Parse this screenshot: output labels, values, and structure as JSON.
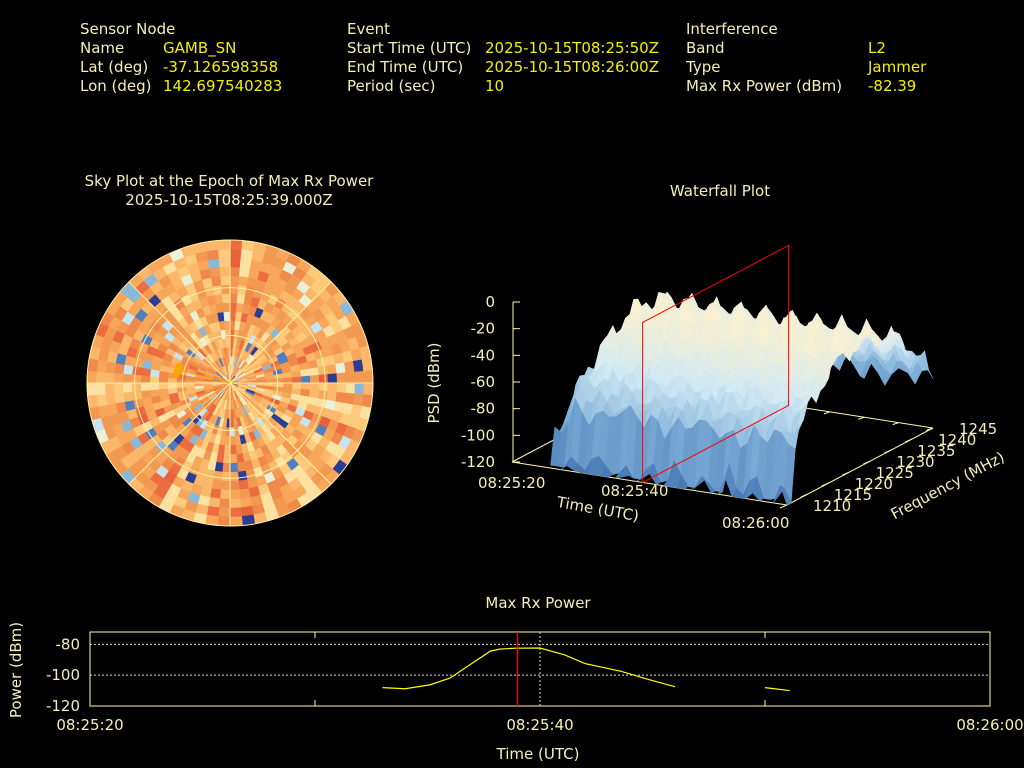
{
  "header": {
    "sensor": {
      "title": "Sensor Node",
      "name_label": "Name",
      "name": "GAMB_SN",
      "lat_label": "Lat (deg)",
      "lat": "-37.126598358",
      "lon_label": "Lon (deg)",
      "lon": "142.697540283"
    },
    "event": {
      "title": "Event",
      "start_label": "Start Time (UTC)",
      "start": "2025-10-15T08:25:50Z",
      "end_label": "End Time (UTC)",
      "end": "2025-10-15T08:26:00Z",
      "period_label": "Period (sec)",
      "period": "10"
    },
    "interference": {
      "title": "Interference",
      "band_label": "Band",
      "band": "L2",
      "type_label": "Type",
      "type": "Jammer",
      "power_label": "Max Rx Power (dBm)",
      "power": "-82.39"
    }
  },
  "colors": {
    "label": "#f5eeb8",
    "value": "#f4f000",
    "marker": "#ff0000",
    "line": "#ffff00"
  },
  "chart_data": [
    {
      "type": "heatmap",
      "projection": "polar-sky",
      "title": "Sky Plot at the Epoch of Max Rx Power",
      "subtitle": "2025-10-15T08:25:39.000Z",
      "elevation_rings_deg": [
        0,
        30,
        60
      ],
      "max_power_direction": {
        "azimuth_deg": 284,
        "elevation_deg": 56
      }
    },
    {
      "type": "surface",
      "title": "Waterfall Plot",
      "xlabel": "Time (UTC)",
      "ylabel": "Frequency (MHz)",
      "zlabel": "PSD (dBm)",
      "x_ticks": [
        "08:25:20",
        "08:25:40",
        "08:26:00"
      ],
      "x_range_sec": [
        20,
        60
      ],
      "y_ticks": [
        "1210",
        "1215",
        "1220",
        "1225",
        "1230",
        "1235",
        "1240",
        "1245"
      ],
      "y_range": [
        1210,
        1245
      ],
      "z_ticks": [
        "0",
        "-20",
        "-40",
        "-60",
        "-80",
        "-100",
        "-120"
      ],
      "z_range": [
        -120,
        0
      ],
      "marker_time_sec": 39,
      "peak_band_mhz": [
        1220,
        1235
      ],
      "peak_psd_dbm": -25
    },
    {
      "type": "line",
      "title": "Max Rx Power",
      "xlabel": "Time (UTC)",
      "ylabel": "Power (dBm)",
      "x_ticks": [
        "08:25:20",
        "08:25:40",
        "08:26:00"
      ],
      "x_range_sec": [
        20,
        60
      ],
      "y_ticks": [
        "-80",
        "-100",
        "-120"
      ],
      "ylim": [
        -120,
        -72
      ],
      "marker_time_sec": 39,
      "series": [
        {
          "name": "segment-1",
          "x_sec": [
            33.0,
            34.0,
            35.1,
            36.0,
            36.9,
            37.8,
            38.2,
            38.9,
            40.0,
            41.1,
            42.0,
            43.6,
            44.9,
            46.0
          ],
          "values": [
            -108.1,
            -108.8,
            -106.3,
            -101.9,
            -93.1,
            -84.4,
            -83.1,
            -82.5,
            -82.4,
            -86.9,
            -92.5,
            -97.5,
            -103.1,
            -107.5
          ]
        },
        {
          "name": "segment-2",
          "x_sec": [
            50.0,
            51.1
          ],
          "values": [
            -108.1,
            -110.0
          ]
        }
      ]
    }
  ]
}
